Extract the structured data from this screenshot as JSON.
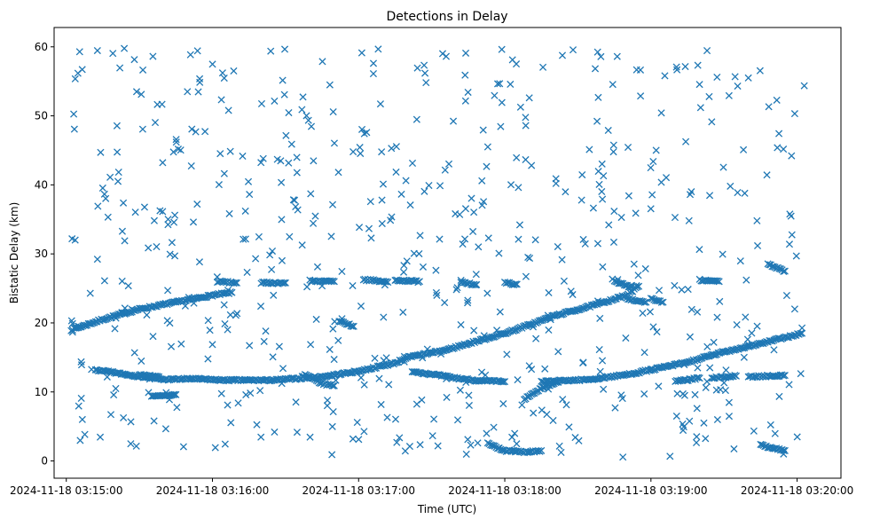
{
  "chart_data": {
    "type": "scatter",
    "title": "Detections in Delay",
    "xlabel": "Time (UTC)",
    "ylabel": "Bistatic Delay (km)",
    "x_axis_type": "time",
    "x_ticks": [
      "2024-11-18 03:15:00",
      "2024-11-18 03:16:00",
      "2024-11-18 03:17:00",
      "2024-11-18 03:18:00",
      "2024-11-18 03:19:00",
      "2024-11-18 03:20:00"
    ],
    "y_ticks": [
      0,
      10,
      20,
      30,
      40,
      50,
      60
    ],
    "xlim": [
      "2024-11-18 03:14:55",
      "2024-11-18 03:20:18"
    ],
    "ylim": [
      -2.5,
      62.8
    ],
    "grid": false,
    "marker": "x",
    "color": "#1f77b4",
    "tracks": [
      {
        "points": [
          [
            "2024-11-18 03:15:02",
            19.0
          ],
          [
            "2024-11-18 03:15:15",
            20.5
          ],
          [
            "2024-11-18 03:15:30",
            22.0
          ],
          [
            "2024-11-18 03:15:45",
            23.0
          ],
          [
            "2024-11-18 03:16:00",
            24.0
          ],
          [
            "2024-11-18 03:16:08",
            24.4
          ]
        ]
      },
      {
        "points": [
          [
            "2024-11-18 03:15:12",
            13.2
          ],
          [
            "2024-11-18 03:15:25",
            12.5
          ],
          [
            "2024-11-18 03:15:40",
            11.8
          ],
          [
            "2024-11-18 03:15:52",
            11.9
          ],
          [
            "2024-11-18 03:16:05",
            11.7
          ],
          [
            "2024-11-18 03:16:25",
            11.7
          ],
          [
            "2024-11-18 03:16:45",
            12.2
          ],
          [
            "2024-11-18 03:17:00",
            13.0
          ],
          [
            "2024-11-18 03:17:15",
            14.2
          ],
          [
            "2024-11-18 03:17:20",
            15.0
          ]
        ]
      },
      {
        "points": [
          [
            "2024-11-18 03:15:35",
            9.3
          ],
          [
            "2024-11-18 03:15:45",
            9.6
          ]
        ]
      },
      {
        "points": [
          [
            "2024-11-18 03:15:30",
            12.5
          ],
          [
            "2024-11-18 03:15:38",
            12.2
          ]
        ]
      },
      {
        "points": [
          [
            "2024-11-18 03:16:02",
            26.0
          ],
          [
            "2024-11-18 03:16:10",
            25.8
          ]
        ]
      },
      {
        "points": [
          [
            "2024-11-18 03:16:20",
            25.8
          ],
          [
            "2024-11-18 03:16:30",
            25.8
          ]
        ]
      },
      {
        "points": [
          [
            "2024-11-18 03:16:40",
            26.1
          ],
          [
            "2024-11-18 03:16:50",
            26.0
          ]
        ]
      },
      {
        "points": [
          [
            "2024-11-18 03:16:38",
            12.5
          ],
          [
            "2024-11-18 03:16:45",
            11.2
          ],
          [
            "2024-11-18 03:16:50",
            10.9
          ]
        ]
      },
      {
        "points": [
          [
            "2024-11-18 03:16:52",
            20.3
          ],
          [
            "2024-11-18 03:16:58",
            19.5
          ]
        ]
      },
      {
        "points": [
          [
            "2024-11-18 03:17:02",
            26.3
          ],
          [
            "2024-11-18 03:17:12",
            25.9
          ]
        ]
      },
      {
        "points": [
          [
            "2024-11-18 03:17:15",
            26.2
          ],
          [
            "2024-11-18 03:17:25",
            26.0
          ]
        ]
      },
      {
        "points": [
          [
            "2024-11-18 03:17:22",
            13.0
          ],
          [
            "2024-11-18 03:17:40",
            12.0
          ],
          [
            "2024-11-18 03:17:50",
            11.6
          ],
          [
            "2024-11-18 03:18:00",
            11.5
          ]
        ]
      },
      {
        "points": [
          [
            "2024-11-18 03:17:20",
            15.0
          ],
          [
            "2024-11-18 03:17:35",
            16.0
          ],
          [
            "2024-11-18 03:17:50",
            17.5
          ],
          [
            "2024-11-18 03:18:00",
            18.5
          ],
          [
            "2024-11-18 03:18:10",
            19.7
          ],
          [
            "2024-11-18 03:18:20",
            21.0
          ],
          [
            "2024-11-18 03:18:35",
            22.4
          ],
          [
            "2024-11-18 03:18:50",
            24.0
          ],
          [
            "2024-11-18 03:18:55",
            25.3
          ]
        ]
      },
      {
        "points": [
          [
            "2024-11-18 03:17:42",
            26.0
          ],
          [
            "2024-11-18 03:17:48",
            25.5
          ]
        ]
      },
      {
        "points": [
          [
            "2024-11-18 03:18:00",
            25.8
          ],
          [
            "2024-11-18 03:18:05",
            25.6
          ]
        ]
      },
      {
        "points": [
          [
            "2024-11-18 03:17:53",
            2.5
          ],
          [
            "2024-11-18 03:18:00",
            1.5
          ],
          [
            "2024-11-18 03:18:08",
            1.3
          ],
          [
            "2024-11-18 03:18:15",
            1.5
          ]
        ]
      },
      {
        "points": [
          [
            "2024-11-18 03:18:08",
            9.0
          ],
          [
            "2024-11-18 03:18:15",
            10.5
          ],
          [
            "2024-11-18 03:18:22",
            11.4
          ]
        ]
      },
      {
        "points": [
          [
            "2024-11-18 03:18:15",
            11.5
          ],
          [
            "2024-11-18 03:18:35",
            11.8
          ],
          [
            "2024-11-18 03:18:50",
            12.5
          ],
          [
            "2024-11-18 03:19:00",
            13.2
          ],
          [
            "2024-11-18 03:19:15",
            14.3
          ],
          [
            "2024-11-18 03:19:30",
            15.8
          ],
          [
            "2024-11-18 03:19:45",
            17.0
          ],
          [
            "2024-11-18 03:20:02",
            18.5
          ]
        ]
      },
      {
        "points": [
          [
            "2024-11-18 03:18:45",
            26.0
          ],
          [
            "2024-11-18 03:18:52",
            25.2
          ]
        ]
      },
      {
        "points": [
          [
            "2024-11-18 03:18:50",
            23.5
          ],
          [
            "2024-11-18 03:18:58",
            23.0
          ]
        ]
      },
      {
        "points": [
          [
            "2024-11-18 03:19:00",
            23.5
          ],
          [
            "2024-11-18 03:19:05",
            23.0
          ]
        ]
      },
      {
        "points": [
          [
            "2024-11-18 03:19:10",
            11.5
          ],
          [
            "2024-11-18 03:19:20",
            12.0
          ]
        ]
      },
      {
        "points": [
          [
            "2024-11-18 03:19:20",
            26.2
          ],
          [
            "2024-11-18 03:19:28",
            26.0
          ]
        ]
      },
      {
        "points": [
          [
            "2024-11-18 03:19:25",
            12.0
          ],
          [
            "2024-11-18 03:19:35",
            12.3
          ]
        ]
      },
      {
        "points": [
          [
            "2024-11-18 03:19:40",
            12.2
          ],
          [
            "2024-11-18 03:19:55",
            12.4
          ]
        ]
      },
      {
        "points": [
          [
            "2024-11-18 03:19:45",
            2.3
          ],
          [
            "2024-11-18 03:19:55",
            1.5
          ]
        ]
      },
      {
        "points": [
          [
            "2024-11-18 03:19:48",
            28.5
          ],
          [
            "2024-11-18 03:19:55",
            27.5
          ]
        ]
      }
    ],
    "noise": {
      "count": 620,
      "x_range": [
        "2024-11-18 03:15:02",
        "2024-11-18 03:20:04"
      ],
      "y_range": [
        0.5,
        59.8
      ],
      "seed": 7
    }
  }
}
